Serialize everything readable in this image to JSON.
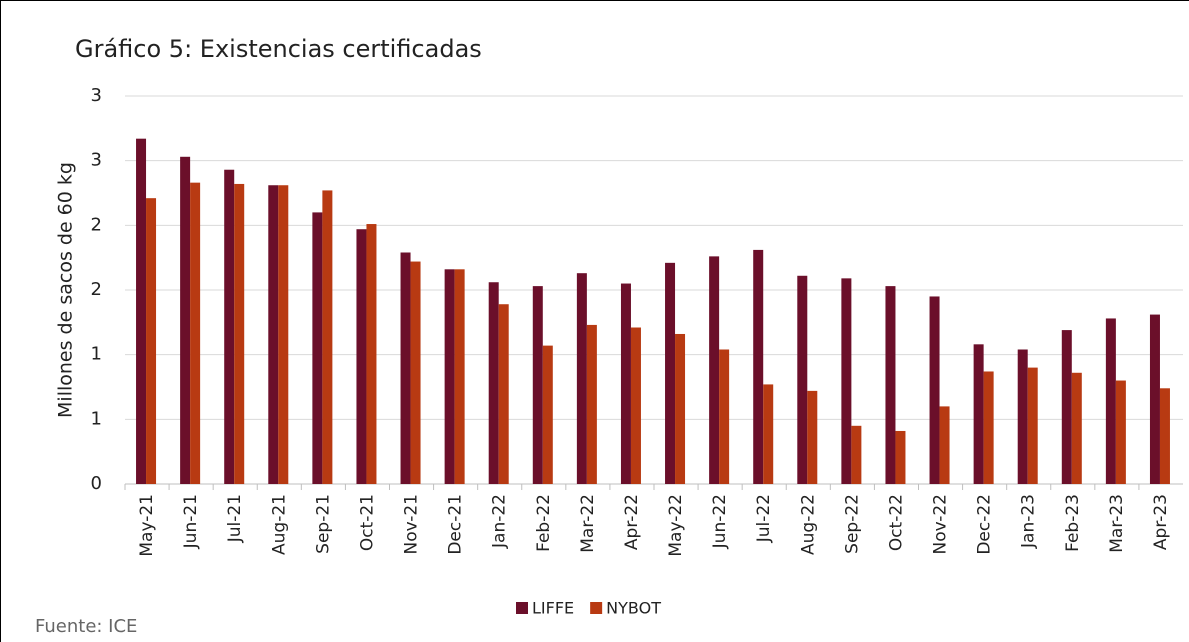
{
  "chart_data": {
    "type": "bar",
    "title": "Gráfico 5: Existencias certificadas",
    "y_label": "Millones de sacos de 60 kg",
    "source": "Fuente: ICE",
    "categories": [
      "May-21",
      "Jun-21",
      "Jul-21",
      "Aug-21",
      "Sep-21",
      "Oct-21",
      "Nov-21",
      "Dec-21",
      "Jan-22",
      "Feb-22",
      "Mar-22",
      "Apr-22",
      "May-22",
      "Jun-22",
      "Jul-22",
      "Aug-22",
      "Sep-22",
      "Oct-22",
      "Nov-22",
      "Dec-22",
      "Jan-23",
      "Feb-23",
      "Mar-23",
      "Apr-23"
    ],
    "series": [
      {
        "name": "LIFFE",
        "color": "#6b0f2a",
        "values": [
          2.67,
          2.53,
          2.43,
          2.31,
          2.1,
          1.97,
          1.79,
          1.66,
          1.56,
          1.53,
          1.63,
          1.55,
          1.71,
          1.76,
          1.81,
          1.61,
          1.59,
          1.53,
          1.45,
          1.08,
          1.04,
          1.19,
          1.28,
          1.31
        ]
      },
      {
        "name": "NYBOT",
        "color": "#b83a12",
        "values": [
          2.21,
          2.33,
          2.32,
          2.31,
          2.27,
          2.01,
          1.72,
          1.66,
          1.39,
          1.07,
          1.23,
          1.21,
          1.16,
          1.04,
          0.77,
          0.72,
          0.45,
          0.41,
          0.6,
          0.87,
          0.9,
          0.86,
          0.8,
          0.74
        ]
      }
    ],
    "ylim": [
      0,
      3
    ],
    "yticks": [
      0,
      {
        "value": 0.5,
        "label": "1"
      },
      1,
      {
        "value": 1.5,
        "label": "2"
      },
      2,
      {
        "value": 2.5,
        "label": "3"
      },
      3
    ],
    "grid": true,
    "legend": "bottom"
  }
}
